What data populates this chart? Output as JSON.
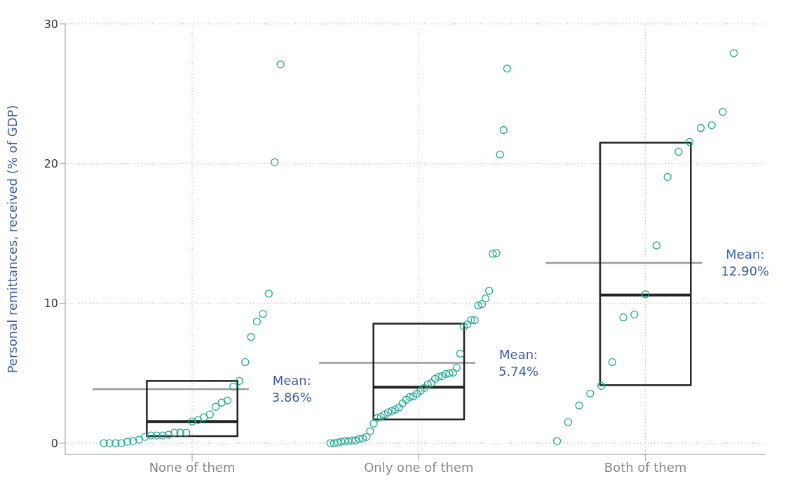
{
  "chart_data": {
    "type": "box",
    "ylabel": "Personal remittances, received (% of GDP)",
    "categories": [
      "None of them",
      "Only one of them",
      "Both of them"
    ],
    "ylim": [
      -0.8,
      30
    ],
    "yticks": [
      0,
      10,
      20,
      30
    ],
    "grid": true,
    "marker": "circle",
    "color": "#222222",
    "boxes": [
      {
        "q1": 0.5,
        "median": 1.55,
        "q3": 4.45
      },
      {
        "q1": 1.7,
        "median": 4.0,
        "q3": 8.55
      },
      {
        "q1": 4.15,
        "median": 10.6,
        "q3": 21.5
      }
    ],
    "ref_lines": [
      {
        "axis": "y",
        "value": 3.86,
        "label": "Mean: 3.86%",
        "color": "#999999"
      },
      {
        "axis": "y",
        "value": 5.74,
        "label": "Mean: 5.74%",
        "color": "#999999"
      },
      {
        "axis": "y",
        "value": 12.9,
        "label": "Mean: 12.90%",
        "color": "#999999"
      }
    ],
    "series": [
      {
        "type": "scatter",
        "color": "#1aaa8f",
        "x": [
          "None of them",
          "None of them",
          "None of them",
          "None of them",
          "None of them",
          "None of them",
          "None of them",
          "None of them",
          "None of them",
          "None of them",
          "None of them",
          "None of them",
          "None of them",
          "None of them",
          "None of them",
          "None of them",
          "None of them",
          "None of them",
          "None of them",
          "None of them",
          "None of them",
          "None of them",
          "None of them",
          "None of them",
          "None of them",
          "None of them",
          "None of them",
          "None of them",
          "None of them",
          "None of them",
          "None of them",
          "Only one of them",
          "Only one of them",
          "Only one of them",
          "Only one of them",
          "Only one of them",
          "Only one of them",
          "Only one of them",
          "Only one of them",
          "Only one of them",
          "Only one of them",
          "Only one of them",
          "Only one of them",
          "Only one of them",
          "Only one of them",
          "Only one of them",
          "Only one of them",
          "Only one of them",
          "Only one of them",
          "Only one of them",
          "Only one of them",
          "Only one of them",
          "Only one of them",
          "Only one of them",
          "Only one of them",
          "Only one of them",
          "Only one of them",
          "Only one of them",
          "Only one of them",
          "Only one of them",
          "Only one of them",
          "Only one of them",
          "Only one of them",
          "Only one of them",
          "Only one of them",
          "Only one of them",
          "Only one of them",
          "Only one of them",
          "Only one of them",
          "Only one of them",
          "Only one of them",
          "Only one of them",
          "Only one of them",
          "Only one of them",
          "Only one of them",
          "Only one of them",
          "Only one of them",
          "Only one of them",
          "Only one of them",
          "Only one of them",
          "Only one of them",
          "Both of them",
          "Both of them",
          "Both of them",
          "Both of them",
          "Both of them",
          "Both of them",
          "Both of them",
          "Both of them",
          "Both of them",
          "Both of them",
          "Both of them",
          "Both of them",
          "Both of them",
          "Both of them",
          "Both of them",
          "Both of them",
          "Both of them"
        ],
        "values": [
          0,
          0,
          0,
          0,
          0.1,
          0.15,
          0.25,
          0.45,
          0.55,
          0.55,
          0.55,
          0.6,
          0.75,
          0.75,
          0.75,
          1.55,
          1.65,
          1.85,
          2.05,
          2.6,
          2.9,
          3.05,
          4.05,
          4.45,
          5.8,
          7.6,
          8.7,
          9.25,
          10.7,
          20.1,
          27.1,
          0,
          0,
          0.05,
          0.1,
          0.15,
          0.15,
          0.2,
          0.2,
          0.3,
          0.35,
          0.45,
          0.85,
          1.4,
          1.8,
          1.9,
          2.05,
          2.2,
          2.3,
          2.4,
          2.55,
          2.85,
          3.1,
          3.3,
          3.35,
          3.55,
          3.75,
          3.95,
          4.2,
          4.3,
          4.6,
          4.75,
          4.8,
          4.95,
          5.0,
          5.05,
          5.4,
          6.4,
          8.35,
          8.5,
          8.8,
          8.8,
          9.85,
          9.95,
          10.35,
          10.9,
          13.55,
          13.6,
          20.65,
          22.4,
          26.8,
          0.15,
          1.5,
          2.7,
          3.55,
          4.1,
          5.8,
          9.0,
          9.2,
          10.65,
          14.15,
          19.05,
          20.85,
          21.55,
          22.55,
          22.75,
          23.7,
          27.9
        ]
      }
    ]
  }
}
